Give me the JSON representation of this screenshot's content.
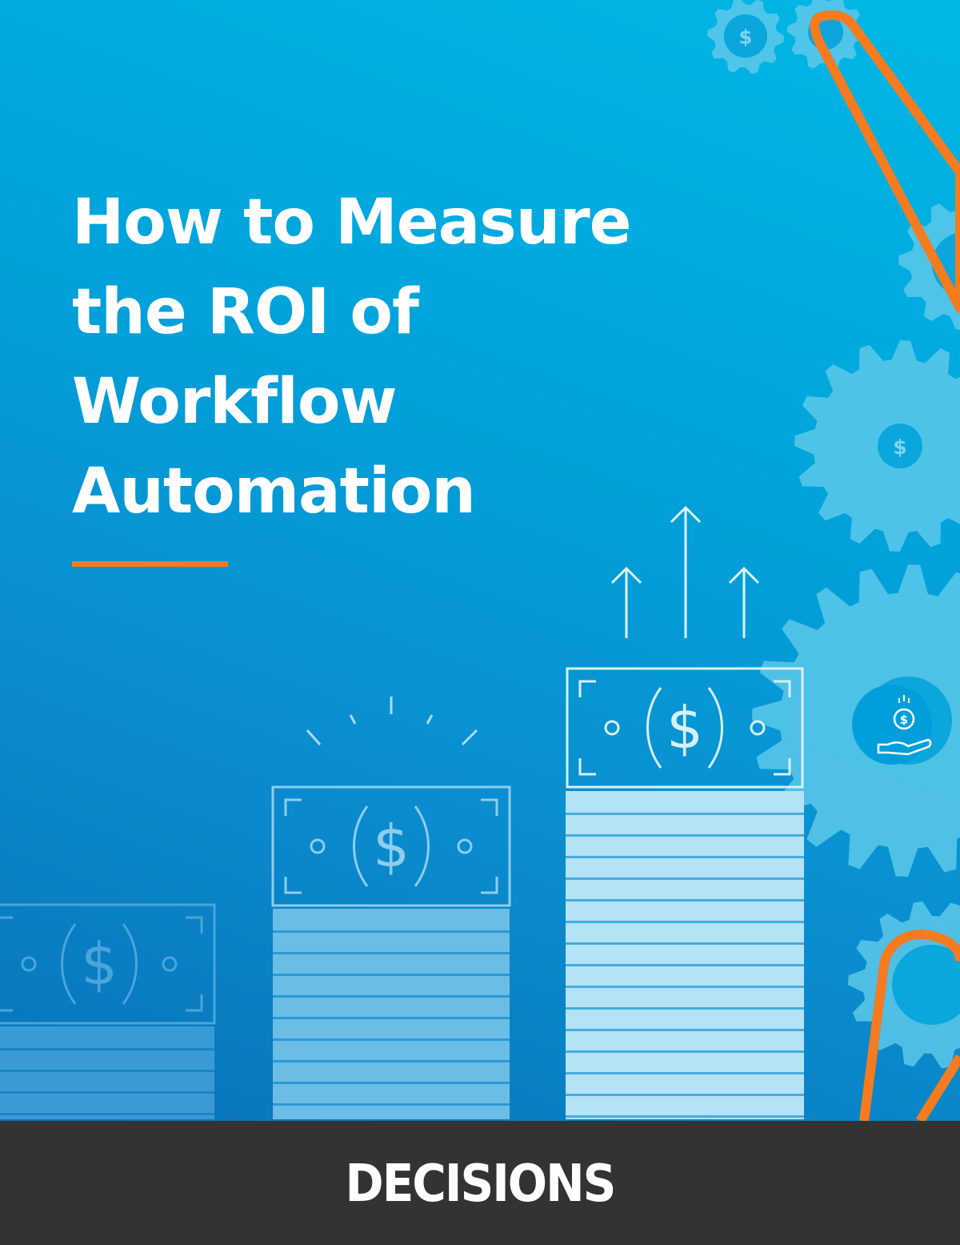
{
  "cover": {
    "title": "How to Measure\nthe ROI of\nWorkflow\nAutomation",
    "accent_color": "#f47b20",
    "background_colors": [
      "#00b8e6",
      "#0a72bb"
    ],
    "illustration": {
      "icons": [
        "gear-icon",
        "dollar-bill-icon",
        "up-arrow-icon",
        "hand-coin-icon"
      ]
    }
  },
  "footer": {
    "logo_text": "DECISIONS",
    "background_color": "#333333"
  }
}
